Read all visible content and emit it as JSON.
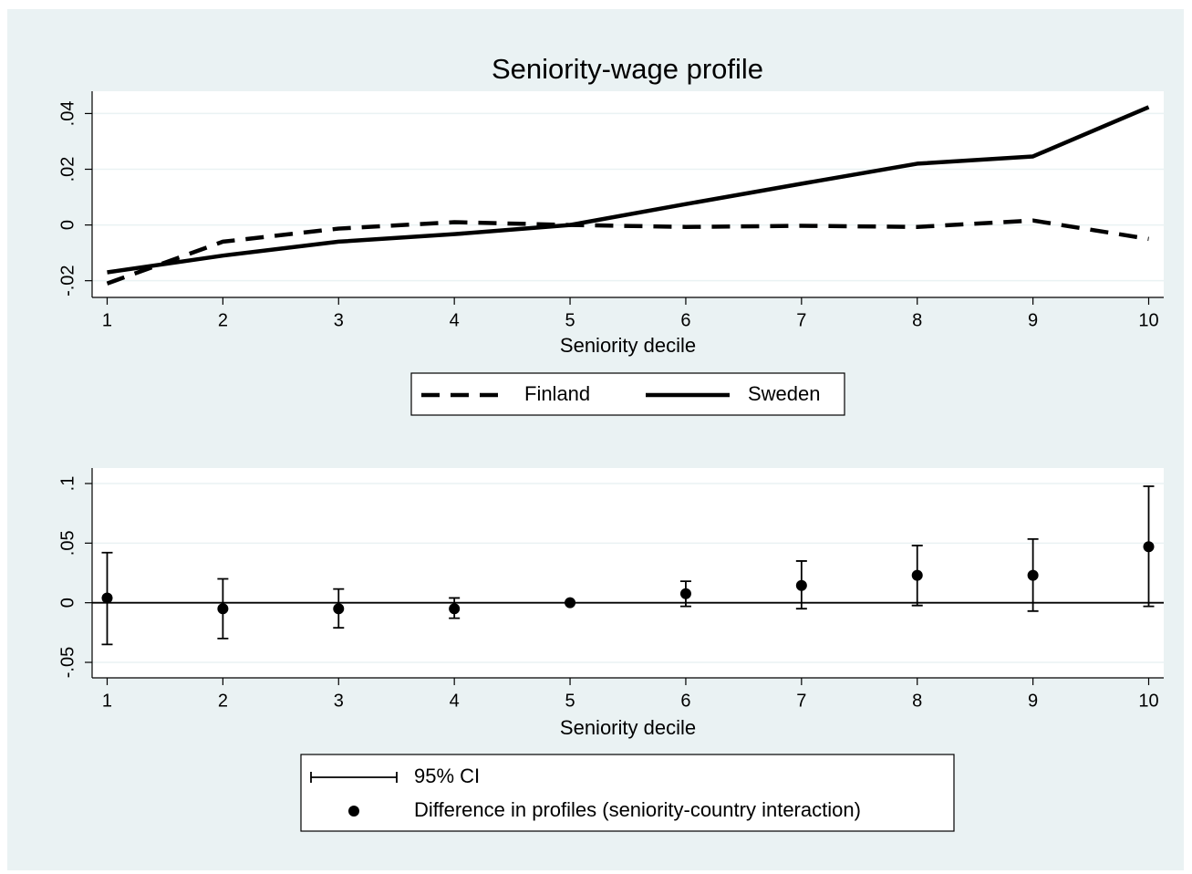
{
  "chart_data": [
    {
      "type": "line",
      "title": "Seniority-wage profile",
      "x_label": "Seniority decile",
      "x": [
        1,
        2,
        3,
        4,
        5,
        6,
        7,
        8,
        9,
        10
      ],
      "xlim": [
        0.87,
        10.13
      ],
      "xticks": [
        1,
        2,
        3,
        4,
        5,
        6,
        7,
        8,
        9,
        10
      ],
      "ylim": [
        -0.026,
        0.048
      ],
      "yticks": [
        {
          "value": -0.02,
          "label": "-.02"
        },
        {
          "value": 0,
          "label": "0"
        },
        {
          "value": 0.02,
          "label": ".02"
        },
        {
          "value": 0.04,
          "label": ".04"
        }
      ],
      "grid": true,
      "series": [
        {
          "name": "Finland",
          "color": "#000000",
          "dash": true,
          "values": [
            -0.021,
            -0.006,
            -0.0013,
            0.001,
            0,
            -0.0007,
            -0.0003,
            -0.0007,
            0.0016,
            -0.005
          ]
        },
        {
          "name": "Sweden",
          "color": "#000000",
          "dash": false,
          "values": [
            -0.017,
            -0.011,
            -0.006,
            -0.0033,
            0,
            0.0075,
            0.0148,
            0.022,
            0.0246,
            0.0423
          ]
        }
      ]
    },
    {
      "type": "errorbar",
      "x_label": "Seniority decile",
      "x": [
        1,
        2,
        3,
        4,
        5,
        6,
        7,
        8,
        9,
        10
      ],
      "xlim": [
        0.87,
        10.13
      ],
      "xticks": [
        1,
        2,
        3,
        4,
        5,
        6,
        7,
        8,
        9,
        10
      ],
      "ylim": [
        -0.063,
        0.113
      ],
      "yticks": [
        {
          "value": -0.05,
          "label": "-.05"
        },
        {
          "value": 0,
          "label": "0"
        },
        {
          "value": 0.05,
          "label": ".05"
        },
        {
          "value": 0.1,
          "label": ".1"
        }
      ],
      "grid": true,
      "refline": 0,
      "ci": {
        "name": "95% CI",
        "color": "#000000",
        "low": [
          -0.035,
          -0.03,
          -0.021,
          -0.013,
          0,
          -0.003,
          -0.005,
          -0.0023,
          -0.007,
          -0.003
        ],
        "high": [
          0.042,
          0.02,
          0.0115,
          0.004,
          0,
          0.018,
          0.035,
          0.048,
          0.0534,
          0.0977
        ]
      },
      "series": [
        {
          "name": "Difference in profiles (seniority-country interaction)",
          "color": "#000000",
          "values": [
            0.004,
            -0.005,
            -0.005,
            -0.005,
            0,
            0.0076,
            0.0145,
            0.023,
            0.023,
            0.047
          ]
        }
      ]
    }
  ]
}
